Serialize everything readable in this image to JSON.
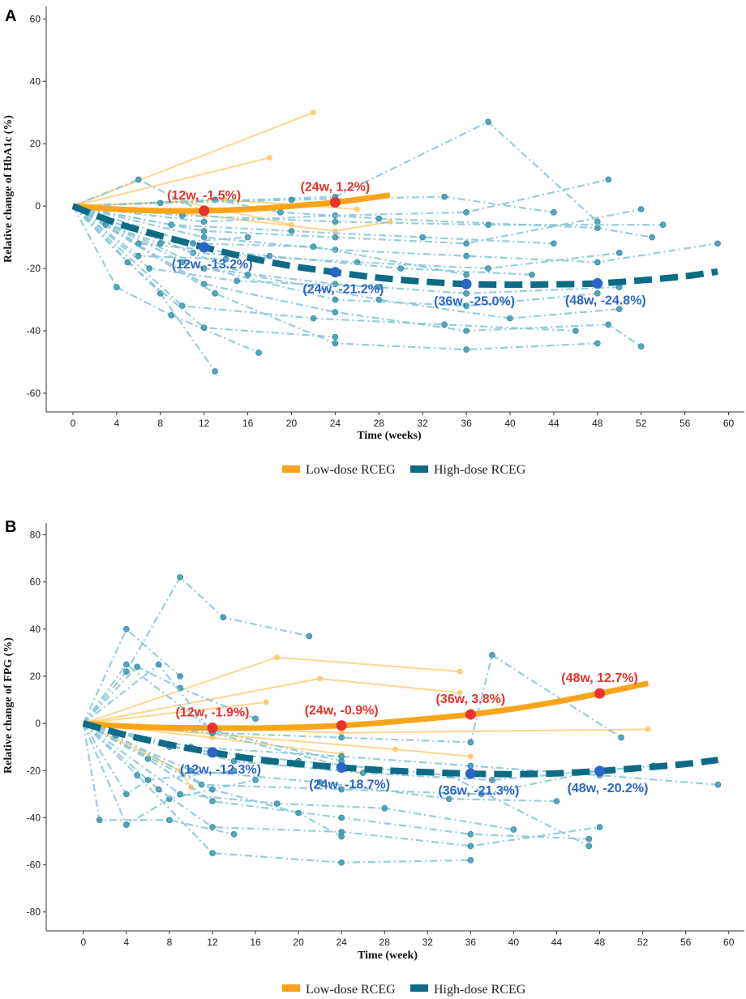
{
  "colors": {
    "low_dose": "#f9a51b",
    "low_dose_light": "#fbc96b",
    "high_dose": "#0e6b85",
    "high_dose_light": "#86c3d6",
    "point_low": "#e8332d",
    "point_high": "#2b66c7",
    "label_low": "#e8332d",
    "label_high": "#2b66c7"
  },
  "legend": {
    "low": "Low-dose RCEG",
    "high": "High-dose RCEG"
  },
  "chart_data": [
    {
      "panel": "A",
      "type": "line",
      "ylabel": "Relative change of HbA1c (%)",
      "xlabel": "Time (weeks)",
      "xlim": [
        -2,
        61
      ],
      "ylim": [
        -66,
        64
      ],
      "xticks": [
        0,
        4,
        8,
        12,
        16,
        20,
        24,
        28,
        32,
        36,
        40,
        44,
        48,
        52,
        56,
        60
      ],
      "yticks": [
        60,
        40,
        20,
        0,
        -20,
        -40,
        -60
      ],
      "low_fit": {
        "name": "Low-dose RCEG",
        "x": [
          0,
          4,
          8,
          12,
          16,
          20,
          24,
          29
        ],
        "y": [
          0,
          -1,
          -1.5,
          -1.5,
          -1,
          0,
          1.2,
          3.5
        ]
      },
      "high_fit": {
        "name": "High-dose RCEG",
        "x": [
          0,
          4,
          8,
          12,
          16,
          20,
          24,
          28,
          32,
          36,
          40,
          44,
          48,
          52,
          56,
          59
        ],
        "y": [
          0,
          -5.5,
          -9.5,
          -13.2,
          -16.5,
          -19.2,
          -21.2,
          -23,
          -24.2,
          -25,
          -25.2,
          -25.1,
          -24.8,
          -23.8,
          -22.5,
          -21
        ]
      },
      "annotations": [
        {
          "group": "low",
          "x": 12,
          "y": -1.5,
          "label": "(12w, -1.5%)"
        },
        {
          "group": "low",
          "x": 24,
          "y": 1.2,
          "label": "(24w, 1.2%)"
        },
        {
          "group": "high",
          "x": 12,
          "y": -13.2,
          "label": "(12w, -13.2%)"
        },
        {
          "group": "high",
          "x": 24,
          "y": -21.2,
          "label": "(24w, -21.2%)"
        },
        {
          "group": "high",
          "x": 36,
          "y": -25.0,
          "label": "(36w, -25.0%)"
        },
        {
          "group": "high",
          "x": 48,
          "y": -24.8,
          "label": "(48w, -24.8%)"
        }
      ],
      "low_individuals": [
        {
          "x": [
            0,
            22
          ],
          "y": [
            0,
            30
          ]
        },
        {
          "x": [
            0,
            18
          ],
          "y": [
            0,
            15.5
          ]
        },
        {
          "x": [
            0,
            10,
            20
          ],
          "y": [
            0,
            1.5,
            -6
          ]
        },
        {
          "x": [
            0,
            12,
            24,
            29
          ],
          "y": [
            0,
            -3,
            -8,
            -5
          ]
        },
        {
          "x": [
            0,
            14,
            26
          ],
          "y": [
            0,
            2,
            -1
          ]
        }
      ],
      "high_individuals": [
        {
          "x": [
            0,
            24,
            38,
            48
          ],
          "y": [
            0,
            3,
            27,
            -5
          ]
        },
        {
          "x": [
            0,
            6,
            12
          ],
          "y": [
            0,
            8.5,
            -2
          ]
        },
        {
          "x": [
            0,
            12,
            24,
            36,
            49
          ],
          "y": [
            0,
            -5,
            -3,
            -2,
            8.5
          ]
        },
        {
          "x": [
            0,
            13,
            19,
            28,
            48,
            53
          ],
          "y": [
            0,
            2,
            -2,
            -4,
            -7,
            -10
          ]
        },
        {
          "x": [
            0,
            12,
            24,
            36,
            52
          ],
          "y": [
            0,
            -8,
            -10,
            -12,
            -1
          ]
        },
        {
          "x": [
            0,
            10,
            24,
            38,
            54
          ],
          "y": [
            0,
            -3,
            -5,
            -6,
            -6
          ]
        },
        {
          "x": [
            0,
            12,
            24,
            36,
            48,
            59
          ],
          "y": [
            0,
            -10,
            -14,
            -16,
            -18,
            -12
          ]
        },
        {
          "x": [
            0,
            11,
            26,
            38,
            50
          ],
          "y": [
            0,
            -15,
            -18,
            -20,
            -15
          ]
        },
        {
          "x": [
            0,
            12,
            24,
            36,
            50
          ],
          "y": [
            0,
            -20,
            -25,
            -28,
            -26
          ]
        },
        {
          "x": [
            0,
            10,
            24,
            36,
            48
          ],
          "y": [
            0,
            -18,
            -30,
            -32,
            -28
          ]
        },
        {
          "x": [
            0,
            16,
            28,
            40,
            50
          ],
          "y": [
            0,
            -22,
            -30,
            -36,
            -33
          ]
        },
        {
          "x": [
            0,
            12,
            24,
            36,
            49,
            52
          ],
          "y": [
            0,
            -25,
            -34,
            -40,
            -38,
            -45
          ]
        },
        {
          "x": [
            0,
            13,
            24,
            36,
            48
          ],
          "y": [
            0,
            -28,
            -44,
            -46,
            -44
          ]
        },
        {
          "x": [
            0,
            10,
            22,
            34,
            46
          ],
          "y": [
            0,
            -32,
            -36,
            -38,
            -40
          ]
        },
        {
          "x": [
            0,
            8,
            13
          ],
          "y": [
            0,
            -28,
            -53
          ]
        },
        {
          "x": [
            0,
            4,
            9,
            17
          ],
          "y": [
            0,
            -26,
            -35,
            -47
          ]
        },
        {
          "x": [
            0,
            5,
            12,
            24
          ],
          "y": [
            0,
            -18,
            -39,
            -42
          ]
        },
        {
          "x": [
            0,
            7,
            15,
            28
          ],
          "y": [
            0,
            -20,
            -24,
            -26
          ]
        },
        {
          "x": [
            0,
            6,
            18,
            30,
            42
          ],
          "y": [
            0,
            -12,
            -16,
            -20,
            -22
          ]
        },
        {
          "x": [
            0,
            9,
            20,
            32,
            44
          ],
          "y": [
            0,
            -6,
            -8,
            -10,
            -12
          ]
        },
        {
          "x": [
            0,
            3,
            8,
            16
          ],
          "y": [
            0,
            -6,
            -12,
            -10
          ]
        },
        {
          "x": [
            0,
            8,
            20,
            34,
            44
          ],
          "y": [
            0,
            1,
            2,
            3,
            -2
          ]
        },
        {
          "x": [
            0,
            11,
            22,
            36
          ],
          "y": [
            0,
            -12,
            -13,
            -22
          ]
        },
        {
          "x": [
            0,
            6,
            14
          ],
          "y": [
            0,
            -16,
            -17
          ]
        }
      ]
    },
    {
      "panel": "B",
      "type": "line",
      "ylabel": "Relative change of FPG (%)",
      "xlabel": "Time (week)",
      "xlim": [
        -3,
        61
      ],
      "ylim": [
        -88,
        85
      ],
      "xticks": [
        0,
        4,
        8,
        12,
        16,
        20,
        24,
        28,
        32,
        36,
        40,
        44,
        48,
        52,
        56,
        60
      ],
      "yticks": [
        80,
        60,
        40,
        20,
        0,
        -20,
        -40,
        -60,
        -80
      ],
      "low_fit": {
        "name": "Low-dose RCEG",
        "x": [
          0,
          4,
          8,
          12,
          16,
          20,
          24,
          28,
          32,
          36,
          40,
          44,
          48,
          52.5
        ],
        "y": [
          0,
          -1.2,
          -1.8,
          -1.9,
          -2,
          -1.6,
          -0.9,
          0.4,
          2,
          3.8,
          6.2,
          9.2,
          12.7,
          17
        ]
      },
      "high_fit": {
        "name": "High-dose RCEG",
        "x": [
          0,
          4,
          8,
          12,
          16,
          20,
          24,
          28,
          32,
          36,
          40,
          44,
          48,
          52,
          56,
          59
        ],
        "y": [
          0,
          -5,
          -9,
          -12.3,
          -15.2,
          -17.2,
          -18.7,
          -19.9,
          -20.7,
          -21.3,
          -21.5,
          -21.2,
          -20.2,
          -18.8,
          -17.2,
          -15.5
        ]
      },
      "annotations": [
        {
          "group": "low",
          "x": 12,
          "y": -1.9,
          "label": "(12w, -1.9%)"
        },
        {
          "group": "low",
          "x": 24,
          "y": -0.9,
          "label": "(24w, -0.9%)"
        },
        {
          "group": "low",
          "x": 36,
          "y": 3.8,
          "label": "(36w, 3.8%)"
        },
        {
          "group": "low",
          "x": 48,
          "y": 12.7,
          "label": "(48w, 12.7%)"
        },
        {
          "group": "high",
          "x": 12,
          "y": -12.3,
          "label": "(12w, -12.3%)"
        },
        {
          "group": "high",
          "x": 24,
          "y": -18.7,
          "label": "(24w, -18.7%)"
        },
        {
          "group": "high",
          "x": 36,
          "y": -21.3,
          "label": "(36w, -21.3%)"
        },
        {
          "group": "high",
          "x": 48,
          "y": -20.2,
          "label": "(48w, -20.2%)"
        }
      ],
      "low_individuals": [
        {
          "x": [
            0,
            18,
            35
          ],
          "y": [
            0,
            28,
            22
          ]
        },
        {
          "x": [
            0,
            22,
            35
          ],
          "y": [
            0,
            19,
            13
          ]
        },
        {
          "x": [
            0,
            17
          ],
          "y": [
            0,
            9
          ]
        },
        {
          "x": [
            0,
            24,
            52.5
          ],
          "y": [
            0,
            -4,
            -2.5
          ]
        },
        {
          "x": [
            0,
            29,
            36
          ],
          "y": [
            0,
            -11,
            -14
          ]
        },
        {
          "x": [
            0,
            12,
            24
          ],
          "y": [
            0,
            -6,
            -13
          ]
        },
        {
          "x": [
            0,
            9,
            10
          ],
          "y": [
            0,
            -20,
            -27
          ]
        }
      ],
      "high_individuals": [
        {
          "x": [
            0,
            4,
            9,
            13,
            21
          ],
          "y": [
            0,
            22,
            62,
            45,
            37
          ]
        },
        {
          "x": [
            0,
            4,
            9
          ],
          "y": [
            0,
            40,
            20
          ]
        },
        {
          "x": [
            0,
            4,
            12,
            24
          ],
          "y": [
            0,
            25,
            -3,
            -16
          ]
        },
        {
          "x": [
            0,
            5,
            9,
            16
          ],
          "y": [
            0,
            24,
            15,
            2
          ]
        },
        {
          "x": [
            0,
            7,
            12,
            24
          ],
          "y": [
            0,
            25,
            -4,
            -18
          ]
        },
        {
          "x": [
            0,
            12,
            24,
            36,
            38,
            50
          ],
          "y": [
            0,
            -4,
            -6,
            -8,
            29,
            -6
          ]
        },
        {
          "x": [
            0,
            10,
            24,
            36,
            48,
            59
          ],
          "y": [
            0,
            -10,
            -14,
            -18,
            -22,
            -26
          ]
        },
        {
          "x": [
            0,
            1.5,
            8,
            14
          ],
          "y": [
            0,
            -41,
            -41,
            -47
          ]
        },
        {
          "x": [
            0,
            4,
            8,
            16
          ],
          "y": [
            0,
            -43,
            -32,
            -24
          ]
        },
        {
          "x": [
            0,
            5,
            12,
            24,
            36
          ],
          "y": [
            0,
            -22,
            -55,
            -59,
            -58
          ]
        },
        {
          "x": [
            0,
            7,
            12,
            24,
            36,
            48
          ],
          "y": [
            0,
            -28,
            -44,
            -46,
            -52,
            -44
          ]
        },
        {
          "x": [
            0,
            9,
            18,
            28,
            40
          ],
          "y": [
            0,
            -30,
            -34,
            -36,
            -45
          ]
        },
        {
          "x": [
            0,
            6,
            12,
            24,
            36,
            47
          ],
          "y": [
            0,
            -15,
            -33,
            -40,
            -47,
            -49
          ]
        },
        {
          "x": [
            0,
            10,
            22,
            34,
            44
          ],
          "y": [
            0,
            -20,
            -25,
            -32,
            -33
          ]
        },
        {
          "x": [
            0,
            8,
            20,
            34,
            47
          ],
          "y": [
            0,
            -10,
            -16,
            -22,
            -52
          ]
        },
        {
          "x": [
            0,
            11,
            24,
            37,
            48
          ],
          "y": [
            0,
            -26,
            -28,
            -30,
            -20
          ]
        },
        {
          "x": [
            0,
            4,
            6,
            14
          ],
          "y": [
            0,
            -30,
            -24,
            -20
          ]
        },
        {
          "x": [
            0,
            3,
            12,
            20,
            24
          ],
          "y": [
            0,
            -5,
            -28,
            -38,
            -48
          ]
        },
        {
          "x": [
            0,
            14,
            26,
            38,
            53
          ],
          "y": [
            0,
            -16,
            -21,
            -24,
            -18
          ]
        }
      ]
    }
  ]
}
